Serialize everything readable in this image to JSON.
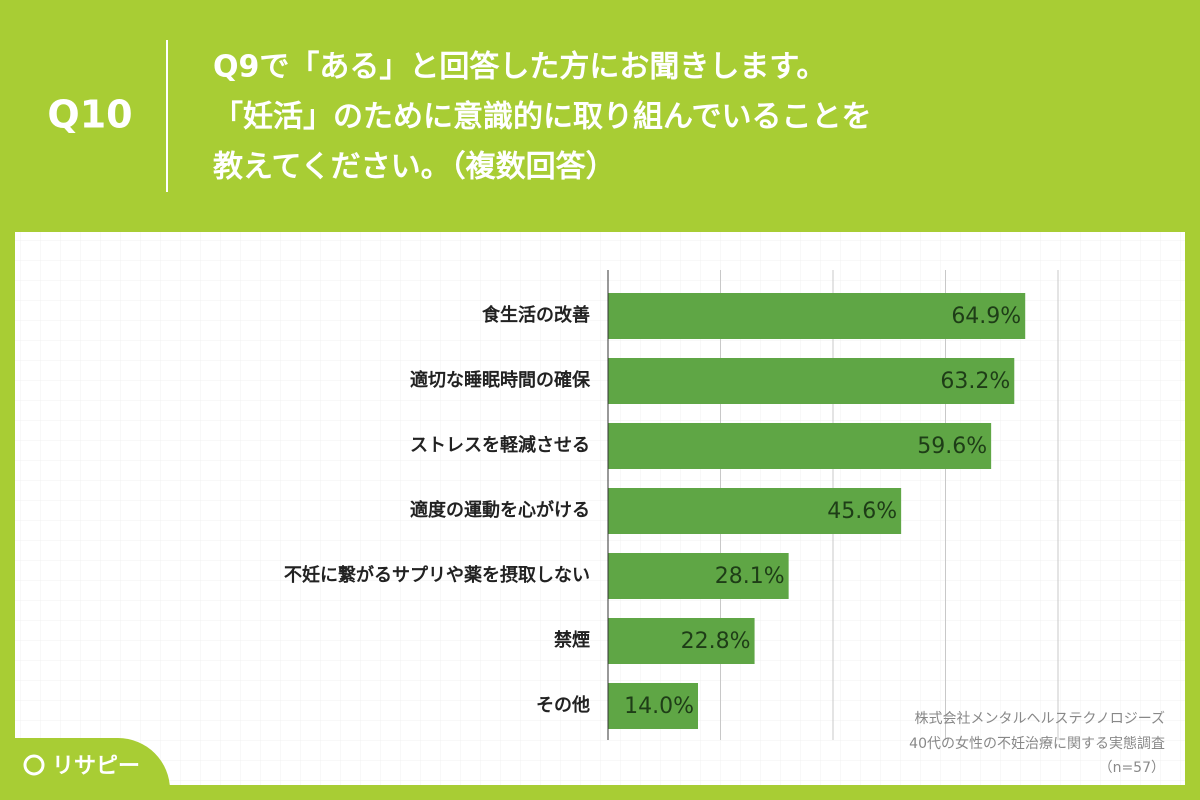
{
  "header": {
    "number": "Q10",
    "title_lines": [
      "Q9で「ある」と回答した方にお聞きします。",
      "「妊活」のために意識的に取り組んでいることを",
      "教えてください。（複数回答）"
    ]
  },
  "chart_data": {
    "type": "bar",
    "orientation": "horizontal",
    "categories": [
      "食生活の改善",
      "適切な睡眠時間の確保",
      "ストレスを軽減させる",
      "適度の運動を心がける",
      "不妊に繋がるサプリや薬を摂取しない",
      "禁煙",
      "その他"
    ],
    "values": [
      64.9,
      63.2,
      59.6,
      45.6,
      28.1,
      22.8,
      14.0
    ],
    "value_labels": [
      "64.9%",
      "63.2%",
      "59.6%",
      "45.6%",
      "28.1%",
      "22.8%",
      "14.0%"
    ],
    "color": "#5fa645",
    "xlim": [
      0,
      70
    ],
    "xgrid": [
      17.5,
      35,
      52.5,
      70
    ],
    "grid": true
  },
  "source": [
    "株式会社メンタルヘルステクノロジーズ",
    "40代の女性の不妊治療に関する実態調査",
    "（n=57）"
  ],
  "logo": "リサピー"
}
